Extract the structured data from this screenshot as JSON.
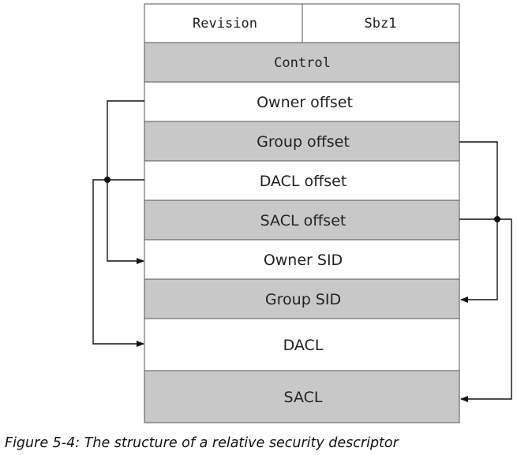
{
  "diagram": {
    "fields": {
      "revision": "Revision",
      "sbz1": "Sbz1",
      "control": "Control",
      "owner_offset": "Owner offset",
      "group_offset": "Group offset",
      "dacl_offset": "DACL offset",
      "sacl_offset": "SACL offset",
      "owner_sid": "Owner SID",
      "group_sid": "Group SID",
      "dacl": "DACL",
      "sacl": "SACL"
    },
    "colors": {
      "shaded": "#c8c8c8",
      "plain": "#ffffff",
      "border": "#555555",
      "line": "#111111"
    }
  },
  "caption": "Figure 5-4: The structure of a relative security descriptor"
}
